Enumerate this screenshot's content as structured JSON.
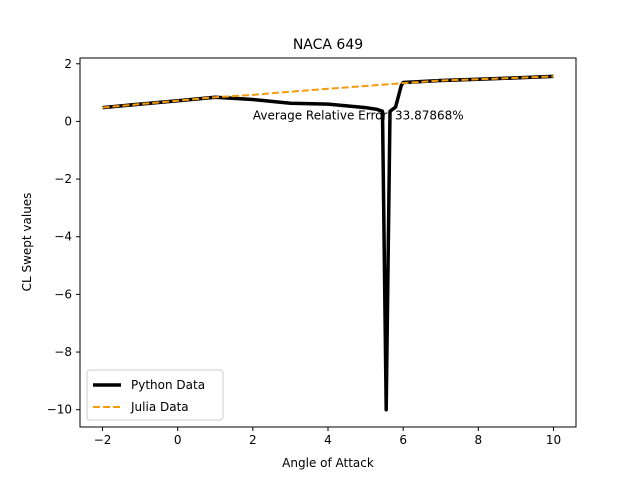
{
  "chart_data": {
    "type": "line",
    "title": "NACA 649",
    "xlabel": "Angle of Attack",
    "ylabel": "CL Swept values",
    "xlim": [
      -2.6,
      10.6
    ],
    "ylim": [
      -10.6,
      2.2
    ],
    "xticks": [
      -2,
      0,
      2,
      4,
      6,
      8,
      10
    ],
    "yticks": [
      -10,
      -8,
      -6,
      -4,
      -2,
      0,
      2
    ],
    "grid": false,
    "legend_position": "lower-left",
    "annotation": "Average Relative Error: 33.87868%",
    "annotation_at": [
      2,
      0.2
    ],
    "series": [
      {
        "name": "Python Data",
        "color": "#000000",
        "style": "solid",
        "x": [
          -2,
          -1,
          0,
          1,
          2,
          3,
          4,
          5,
          5.3,
          5.45,
          5.55,
          5.65,
          5.8,
          5.95,
          6,
          7,
          8,
          9,
          10
        ],
        "y": [
          0.48,
          0.6,
          0.72,
          0.84,
          0.76,
          0.63,
          0.6,
          0.48,
          0.42,
          0.35,
          -10.0,
          0.35,
          0.5,
          1.25,
          1.35,
          1.42,
          1.46,
          1.51,
          1.56
        ]
      },
      {
        "name": "Julia Data",
        "color": "#f59b0c",
        "style": "dashed",
        "x": [
          -2,
          -1,
          0,
          1,
          2,
          3,
          4,
          5,
          6,
          7,
          8,
          9,
          10
        ],
        "y": [
          0.48,
          0.6,
          0.72,
          0.84,
          0.92,
          1.03,
          1.13,
          1.23,
          1.33,
          1.42,
          1.46,
          1.51,
          1.56
        ]
      }
    ]
  }
}
